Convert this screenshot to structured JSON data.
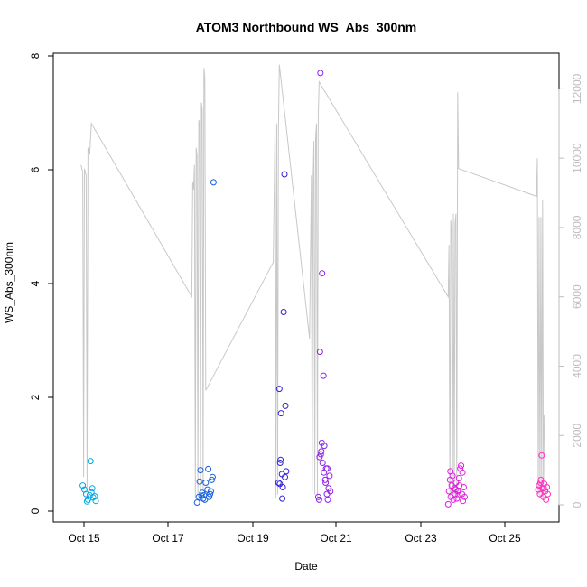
{
  "chart_data": {
    "type": "scatter",
    "title": "ATOM3 Northbound WS_Abs_300nm",
    "xlabel": "Date",
    "ylabel": "WS_Abs_300nm",
    "x_ticks": [
      "Oct 15",
      "Oct 17",
      "Oct 19",
      "Oct 21",
      "Oct 23",
      "Oct 25"
    ],
    "y_ticks": [
      "0",
      "2",
      "4",
      "6",
      "8"
    ],
    "y2_ticks": [
      "0",
      "2000",
      "4000",
      "6000",
      "8000",
      "10000",
      "12000"
    ],
    "xlim": [
      "2016-10-14 00:00",
      "2016-10-26 04:00"
    ],
    "ylim": [
      0,
      8
    ],
    "y2lim": [
      0,
      13000
    ],
    "y2_color": "#bdbdbd",
    "line_color": "#c8c8c8",
    "series": [
      {
        "color": "#00a8e8",
        "points": [
          [
            "2016-10-14 17:00",
            0.45
          ],
          [
            "2016-10-14 18:00",
            0.38
          ],
          [
            "2016-10-14 19:00",
            0.3
          ],
          [
            "2016-10-14 20:00",
            0.2
          ],
          [
            "2016-10-14 21:00",
            0.28
          ],
          [
            "2016-10-14 21:30",
            0.88
          ],
          [
            "2016-10-14 22:00",
            0.33
          ],
          [
            "2016-10-14 23:00",
            0.24
          ],
          [
            "2016-10-15 00:00",
            0.26
          ],
          [
            "2016-10-14 19:30",
            0.17
          ],
          [
            "2016-10-14 22:30",
            0.4
          ],
          [
            "2016-10-15 00:30",
            0.18
          ]
        ]
      },
      {
        "color": "#1560e0",
        "points": [
          [
            "2016-10-17 11:00",
            0.15
          ],
          [
            "2016-10-17 12:00",
            0.25
          ],
          [
            "2016-10-17 12:30",
            0.52
          ],
          [
            "2016-10-17 13:00",
            0.72
          ],
          [
            "2016-10-17 14:00",
            0.32
          ],
          [
            "2016-10-17 14:30",
            0.22
          ],
          [
            "2016-10-17 15:00",
            0.28
          ],
          [
            "2016-10-17 16:00",
            0.5
          ],
          [
            "2016-10-17 17:00",
            0.38
          ],
          [
            "2016-10-17 17:30",
            0.74
          ],
          [
            "2016-10-17 18:00",
            0.25
          ],
          [
            "2016-10-17 18:30",
            0.3
          ],
          [
            "2016-10-17 19:00",
            0.35
          ],
          [
            "2016-10-17 19:30",
            0.55
          ],
          [
            "2016-10-17 20:00",
            0.6
          ],
          [
            "2016-10-17 20:30",
            5.78
          ],
          [
            "2016-10-17 15:30",
            0.2
          ],
          [
            "2016-10-17 13:30",
            0.27
          ]
        ]
      },
      {
        "color": "#3020d8",
        "points": [
          [
            "2016-10-19 10:00",
            0.5
          ],
          [
            "2016-10-19 10:30",
            2.15
          ],
          [
            "2016-10-19 11:00",
            0.85
          ],
          [
            "2016-10-19 11:30",
            1.72
          ],
          [
            "2016-10-19 12:00",
            0.65
          ],
          [
            "2016-10-19 12:30",
            0.42
          ],
          [
            "2016-10-19 13:00",
            3.5
          ],
          [
            "2016-10-19 13:30",
            5.92
          ],
          [
            "2016-10-19 14:00",
            1.85
          ],
          [
            "2016-10-19 14:30",
            0.7
          ],
          [
            "2016-10-19 12:15",
            0.22
          ],
          [
            "2016-10-19 11:15",
            0.9
          ],
          [
            "2016-10-19 13:45",
            0.6
          ],
          [
            "2016-10-19 10:45",
            0.48
          ]
        ]
      },
      {
        "color": "#9020e8",
        "points": [
          [
            "2016-10-20 09:00",
            0.25
          ],
          [
            "2016-10-20 09:30",
            0.2
          ],
          [
            "2016-10-20 10:00",
            2.8
          ],
          [
            "2016-10-20 10:15",
            7.7
          ],
          [
            "2016-10-20 10:30",
            1.0
          ],
          [
            "2016-10-20 11:00",
            1.2
          ],
          [
            "2016-10-20 11:15",
            4.18
          ],
          [
            "2016-10-20 11:30",
            0.85
          ],
          [
            "2016-10-20 12:00",
            2.38
          ],
          [
            "2016-10-20 12:30",
            1.15
          ],
          [
            "2016-10-20 13:00",
            0.55
          ],
          [
            "2016-10-20 13:30",
            0.75
          ],
          [
            "2016-10-20 14:00",
            0.3
          ],
          [
            "2016-10-20 14:30",
            0.2
          ],
          [
            "2016-10-20 15:00",
            0.4
          ],
          [
            "2016-10-20 15:30",
            0.62
          ],
          [
            "2016-10-20 16:00",
            0.35
          ],
          [
            "2016-10-20 10:45",
            1.05
          ],
          [
            "2016-10-20 12:15",
            0.68
          ],
          [
            "2016-10-20 13:15",
            0.5
          ],
          [
            "2016-10-20 14:15",
            0.75
          ],
          [
            "2016-10-20 09:45",
            0.95
          ]
        ]
      },
      {
        "color": "#e020e0",
        "points": [
          [
            "2016-10-23 12:00",
            0.12
          ],
          [
            "2016-10-23 12:30",
            0.35
          ],
          [
            "2016-10-23 13:00",
            0.55
          ],
          [
            "2016-10-23 13:30",
            0.25
          ],
          [
            "2016-10-23 14:00",
            0.45
          ],
          [
            "2016-10-23 14:30",
            0.62
          ],
          [
            "2016-10-23 15:00",
            0.2
          ],
          [
            "2016-10-23 15:30",
            0.4
          ],
          [
            "2016-10-23 16:00",
            0.3
          ],
          [
            "2016-10-23 16:30",
            0.5
          ],
          [
            "2016-10-23 17:00",
            0.22
          ],
          [
            "2016-10-23 17:30",
            0.35
          ],
          [
            "2016-10-23 18:00",
            0.28
          ],
          [
            "2016-10-23 18:30",
            0.45
          ],
          [
            "2016-10-23 19:00",
            0.75
          ],
          [
            "2016-10-23 19:30",
            0.8
          ],
          [
            "2016-10-23 20:00",
            0.3
          ],
          [
            "2016-10-23 20:30",
            0.18
          ],
          [
            "2016-10-23 21:00",
            0.42
          ],
          [
            "2016-10-23 21:30",
            0.25
          ],
          [
            "2016-10-23 13:15",
            0.7
          ],
          [
            "2016-10-23 16:15",
            0.38
          ],
          [
            "2016-10-23 18:15",
            0.58
          ],
          [
            "2016-10-23 20:15",
            0.68
          ]
        ]
      },
      {
        "color": "#ff30c0",
        "points": [
          [
            "2016-10-25 16:00",
            0.38
          ],
          [
            "2016-10-25 16:30",
            0.45
          ],
          [
            "2016-10-25 17:00",
            0.3
          ],
          [
            "2016-10-25 17:30",
            0.55
          ],
          [
            "2016-10-25 18:00",
            0.98
          ],
          [
            "2016-10-25 18:30",
            0.4
          ],
          [
            "2016-10-25 19:00",
            0.25
          ],
          [
            "2016-10-25 19:30",
            0.48
          ],
          [
            "2016-10-25 20:00",
            0.35
          ],
          [
            "2016-10-25 20:30",
            0.2
          ],
          [
            "2016-10-25 21:00",
            0.42
          ],
          [
            "2016-10-25 21:30",
            0.3
          ],
          [
            "2016-10-25 17:15",
            0.5
          ],
          [
            "2016-10-25 19:15",
            0.4
          ]
        ]
      }
    ],
    "altitude_line": [
      [
        "2016-10-14 16:00",
        9800
      ],
      [
        "2016-10-14 17:00",
        9600
      ],
      [
        "2016-10-14 17:30",
        800
      ],
      [
        "2016-10-14 18:00",
        9700
      ],
      [
        "2016-10-14 19:00",
        9500
      ],
      [
        "2016-10-14 19:30",
        500
      ],
      [
        "2016-10-14 20:00",
        10300
      ],
      [
        "2016-10-14 21:00",
        10100
      ],
      [
        "2016-10-14 22:00",
        11000
      ],
      [
        "2016-10-17 08:00",
        6000
      ],
      [
        "2016-10-17 08:30",
        9300
      ],
      [
        "2016-10-17 09:00",
        9100
      ],
      [
        "2016-10-17 09:30",
        9800
      ],
      [
        "2016-10-17 10:00",
        200
      ],
      [
        "2016-10-17 10:30",
        10300
      ],
      [
        "2016-10-17 11:00",
        10100
      ],
      [
        "2016-10-17 11:30",
        300
      ],
      [
        "2016-10-17 12:00",
        11100
      ],
      [
        "2016-10-17 12:30",
        10900
      ],
      [
        "2016-10-17 13:00",
        200
      ],
      [
        "2016-10-17 13:30",
        11600
      ],
      [
        "2016-10-17 14:00",
        11400
      ],
      [
        "2016-10-17 14:30",
        400
      ],
      [
        "2016-10-17 15:00",
        12600
      ],
      [
        "2016-10-17 15:30",
        12300
      ],
      [
        "2016-10-17 16:00",
        3300
      ],
      [
        "2016-10-19 07:00",
        7000
      ],
      [
        "2016-10-19 08:00",
        10800
      ],
      [
        "2016-10-19 08:30",
        200
      ],
      [
        "2016-10-19 09:00",
        11000
      ],
      [
        "2016-10-19 09:30",
        300
      ],
      [
        "2016-10-19 10:00",
        10800
      ],
      [
        "2016-10-19 10:30",
        12700
      ],
      [
        "2016-10-20 04:00",
        4800
      ],
      [
        "2016-10-20 05:00",
        9500
      ],
      [
        "2016-10-20 05:30",
        400
      ],
      [
        "2016-10-20 06:00",
        9300
      ],
      [
        "2016-10-20 06:30",
        10500
      ],
      [
        "2016-10-20 07:00",
        300
      ],
      [
        "2016-10-20 07:30",
        10600
      ],
      [
        "2016-10-20 08:00",
        11000
      ],
      [
        "2016-10-20 08:30",
        200
      ],
      [
        "2016-10-20 09:00",
        11200
      ],
      [
        "2016-10-20 09:30",
        12200
      ],
      [
        "2016-10-23 12:00",
        6000
      ],
      [
        "2016-10-23 12:30",
        7500
      ],
      [
        "2016-10-23 13:00",
        200
      ],
      [
        "2016-10-23 13:30",
        8200
      ],
      [
        "2016-10-23 14:00",
        7800
      ],
      [
        "2016-10-23 14:30",
        300
      ],
      [
        "2016-10-23 15:00",
        8400
      ],
      [
        "2016-10-23 15:30",
        200
      ],
      [
        "2016-10-23 16:00",
        8100
      ],
      [
        "2016-10-23 16:30",
        8400
      ],
      [
        "2016-10-23 17:00",
        300
      ],
      [
        "2016-10-23 17:30",
        11900
      ],
      [
        "2016-10-23 18:00",
        9700
      ],
      [
        "2016-10-25 15:00",
        8900
      ],
      [
        "2016-10-25 15:30",
        10000
      ],
      [
        "2016-10-25 16:00",
        300
      ],
      [
        "2016-10-25 16:30",
        8300
      ],
      [
        "2016-10-25 17:00",
        200
      ],
      [
        "2016-10-25 17:30",
        8300
      ],
      [
        "2016-10-25 18:00",
        300
      ],
      [
        "2016-10-25 18:30",
        8800
      ],
      [
        "2016-10-25 19:00",
        200
      ],
      [
        "2016-10-25 19:30",
        2600
      ]
    ]
  }
}
